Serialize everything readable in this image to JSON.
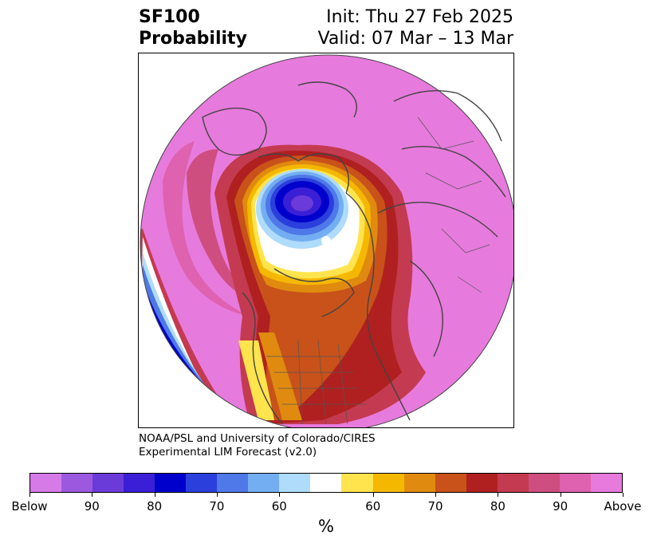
{
  "title": {
    "variable": "SF100",
    "subtitle": "Probability",
    "init": "Init: Thu 27 Feb 2025",
    "valid": "Valid: 07 Mar – 13 Mar"
  },
  "credit": {
    "line1": "NOAA/PSL and University of Colorado/CIRES",
    "line2": "Experimental LIM Forecast (v2.0)"
  },
  "colorbar": {
    "colors": [
      "#d67ae8",
      "#9b59e0",
      "#6b3bd9",
      "#3a1fd6",
      "#0000cc",
      "#2a3fdb",
      "#4f78e8",
      "#74aef2",
      "#aedcfa",
      "#ffffff",
      "#ffe44d",
      "#f5b800",
      "#e08a10",
      "#c8521a",
      "#b02020",
      "#c43a50",
      "#cf4e80",
      "#de62b0",
      "#e77add"
    ],
    "labels": [
      "Below",
      "90",
      "80",
      "70",
      "60",
      "60",
      "70",
      "80",
      "90",
      "Above"
    ],
    "unit": "%"
  }
}
